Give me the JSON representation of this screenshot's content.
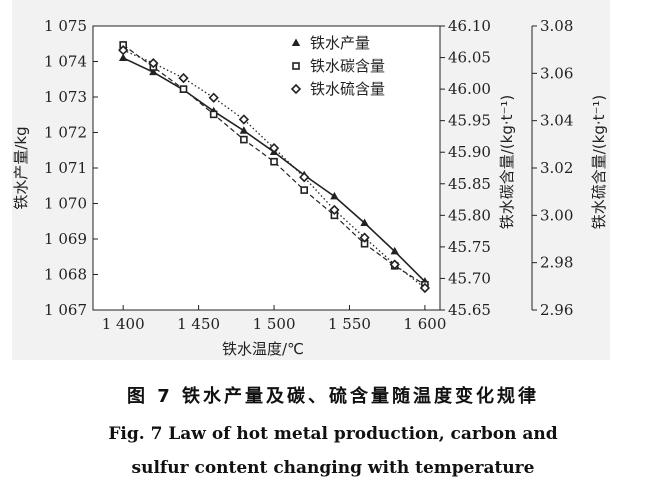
{
  "chart_data": {
    "type": "line",
    "xlabel": "铁水温度/℃",
    "x_ticks": [
      "1 400",
      "1 450",
      "1 500",
      "1 550",
      "1 600"
    ],
    "x": [
      1400,
      1420,
      1440,
      1460,
      1480,
      1500,
      1520,
      1540,
      1560,
      1580,
      1600
    ],
    "xlim": [
      1380,
      1610
    ],
    "axes": {
      "left": {
        "label": "铁水产量/kg",
        "ticks": [
          "1 075",
          "1 074",
          "1 073",
          "1 072",
          "1 071",
          "1 070",
          "1 069",
          "1 068",
          "1 067"
        ],
        "ylim": [
          1067,
          1075
        ]
      },
      "right1": {
        "label": "铁水碳含量/(kg·t⁻¹)",
        "ticks": [
          "46.10",
          "46.05",
          "46.00",
          "45.95",
          "45.90",
          "45.85",
          "45.80",
          "45.75",
          "45.70",
          "45.65"
        ],
        "ylim": [
          45.65,
          46.1
        ]
      },
      "right2": {
        "label": "铁水硫含量/(kg·t⁻¹)",
        "ticks": [
          "3.08",
          "3.06",
          "3.04",
          "3.02",
          "3.00",
          "2.98",
          "2.96"
        ],
        "ylim": [
          2.96,
          3.08
        ]
      }
    },
    "series": [
      {
        "name": "铁水产量",
        "axis": "left",
        "marker": "triangle",
        "line": "solid",
        "values": [
          1074.1,
          1073.7,
          1073.2,
          1072.6,
          1072.05,
          1071.45,
          1070.8,
          1070.2,
          1069.45,
          1068.65,
          1067.8
        ]
      },
      {
        "name": "铁水碳含量",
        "axis": "right1",
        "marker": "square",
        "line": "dashed",
        "values": [
          46.07,
          46.035,
          46.0,
          45.96,
          45.92,
          45.885,
          45.84,
          45.8,
          45.755,
          45.72,
          45.69
        ]
      },
      {
        "name": "铁水硫含量",
        "axis": "right2",
        "marker": "diamond",
        "line": "dotted",
        "values": [
          3.0698,
          3.0643,
          3.058,
          3.0497,
          3.0405,
          3.0284,
          3.0161,
          3.0023,
          2.9906,
          2.9792,
          2.9693
        ]
      }
    ],
    "legend_position": "top-right"
  },
  "caption": {
    "cn": "图 7   铁水产量及碳、硫含量随温度变化规律",
    "en_line1": "Fig. 7   Law of hot metal production, carbon and",
    "en_line2": "sulfur content changing with temperature"
  }
}
